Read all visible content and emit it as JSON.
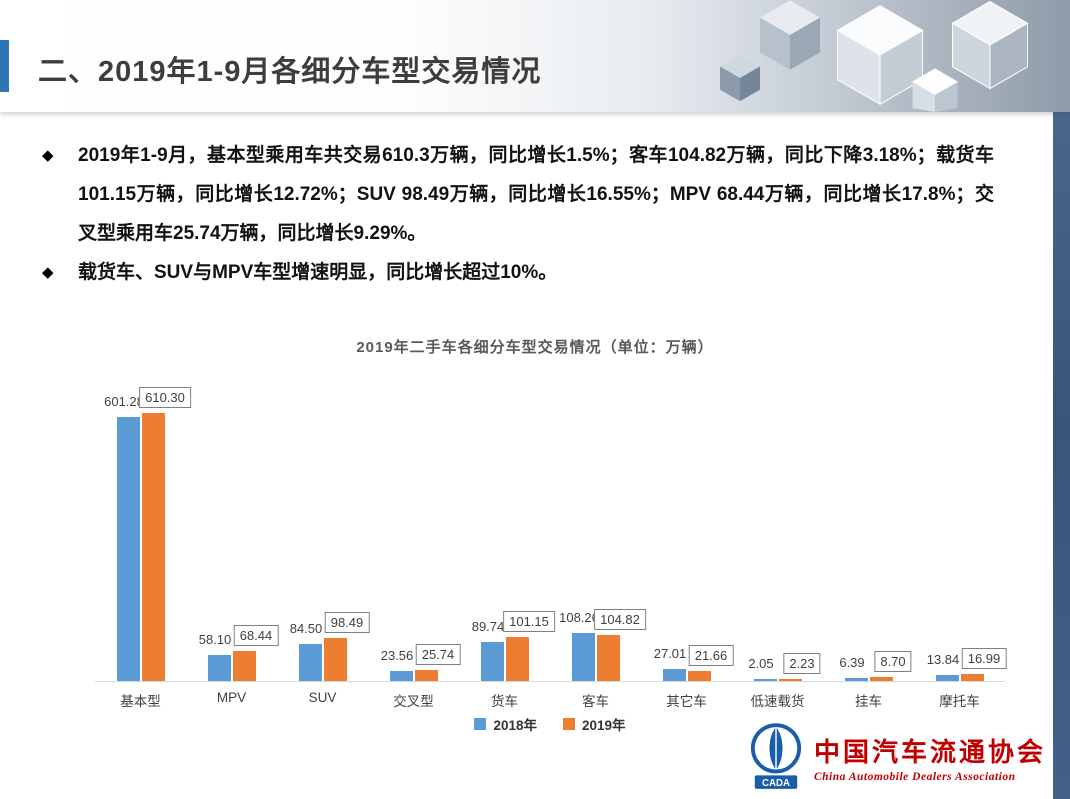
{
  "header": {
    "title": "二、2019年1-9月各细分车型交易情况"
  },
  "bullet_marker": "◆",
  "bullets": [
    "2019年1-9月，基本型乘用车共交易610.3万辆，同比增长1.5%；客车104.82万辆，同比下降3.18%；载货车101.15万辆，同比增长12.72%；SUV 98.49万辆，同比增长16.55%；MPV 68.44万辆，同比增长17.8%；交叉型乘用车25.74万辆，同比增长9.29%。",
    "载货车、SUV与MPV车型增速明显，同比增长超过10%。"
  ],
  "chart_data": {
    "type": "bar",
    "title": "2019年二手车各细分车型交易情况（单位：万辆）",
    "categories": [
      "基本型",
      "MPV",
      "SUV",
      "交叉型",
      "货车",
      "客车",
      "其它车",
      "低速载货",
      "挂车",
      "摩托车"
    ],
    "series": [
      {
        "name": "2018年",
        "color": "#5B9BD5",
        "values": [
          601.28,
          58.1,
          84.5,
          23.56,
          89.74,
          108.26,
          27.01,
          2.05,
          6.39,
          13.84
        ]
      },
      {
        "name": "2019年",
        "color": "#ED7D31",
        "values": [
          610.3,
          68.44,
          98.49,
          25.74,
          101.15,
          104.82,
          21.66,
          2.23,
          8.7,
          16.99
        ]
      }
    ],
    "ylim": [
      0,
      650
    ],
    "grid": false,
    "legend_position": "bottom",
    "value_label_style_2018": "plain",
    "value_label_style_2019": "boxed"
  },
  "logo": {
    "abbr": "CADA",
    "name_cn": "中国汽车流通协会",
    "name_en": "China Automobile Dealers Association",
    "color": "#c00000",
    "emblem_color": "#1a5dab"
  }
}
